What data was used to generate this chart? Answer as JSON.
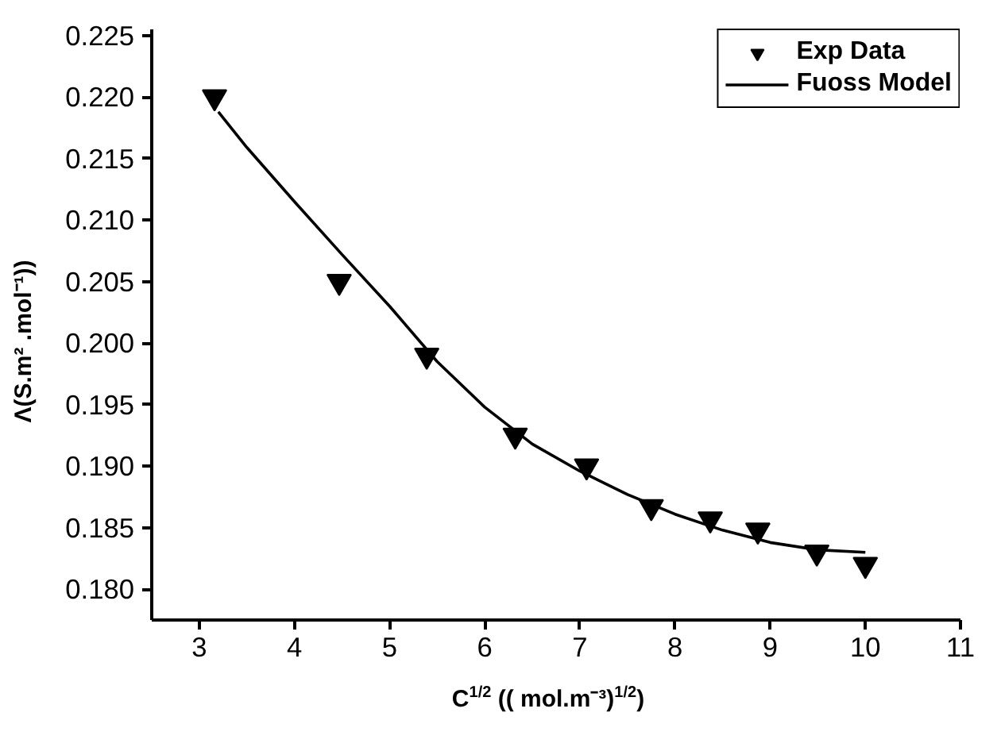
{
  "chart_data": {
    "type": "scatter",
    "xlabel": "C$^{1/2}$ (( mol.m⁻³)$^{1/2}$)",
    "ylabel": "Λ(S.m² .mol⁻¹))",
    "xlim": [
      2.5,
      11
    ],
    "ylim": [
      0.1775,
      0.2255
    ],
    "xticks": [
      3,
      4,
      5,
      6,
      7,
      8,
      9,
      10,
      11
    ],
    "yticks": [
      {
        "value": 0.18,
        "label": "0.180"
      },
      0.185,
      {
        "value": 0.19,
        "label": "0.190"
      },
      0.195,
      {
        "value": 0.2,
        "label": "0.200"
      },
      0.205,
      {
        "value": 0.21,
        "label": "0.210"
      },
      0.215,
      {
        "value": 0.22,
        "label": "0.220"
      },
      0.225
    ],
    "grid": false,
    "legend": "top right",
    "series": [
      {
        "name": "Exp Data",
        "marker": "triangle",
        "color": "#000000",
        "x": [
          3.16,
          4.47,
          5.39,
          6.32,
          7.07,
          7.75,
          8.37,
          8.87,
          9.49,
          10.0
        ],
        "values": [
          0.22,
          0.205,
          0.199,
          0.1925,
          0.19,
          0.1867,
          0.1857,
          0.1848,
          0.183,
          0.182
        ]
      },
      {
        "name": "Fuoss Model",
        "type": "line",
        "color": "#000000",
        "x": [
          3.2,
          3.5,
          4.0,
          4.5,
          5.0,
          5.5,
          6.0,
          6.5,
          7.0,
          7.5,
          8.0,
          8.5,
          9.0,
          9.5,
          10.0
        ],
        "values": [
          0.2188,
          0.2159,
          0.2115,
          0.2072,
          0.203,
          0.1985,
          0.1948,
          0.1918,
          0.1896,
          0.1877,
          0.1861,
          0.1848,
          0.1838,
          0.1832,
          0.183
        ]
      }
    ]
  }
}
